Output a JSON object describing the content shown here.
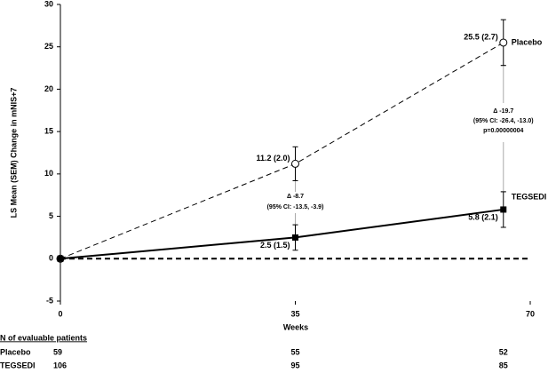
{
  "chart_data": {
    "type": "line",
    "y_label": "LS Mean (SEM) Change in mNIS+7",
    "x_label": "Weeks",
    "xlim": [
      0,
      70
    ],
    "xticks": [
      0,
      35,
      70
    ],
    "ylim": [
      -5,
      30
    ],
    "yticks": [
      -5,
      0,
      5,
      10,
      15,
      20,
      25,
      30
    ],
    "reference_line": 0,
    "series": [
      {
        "name": "Placebo",
        "color": "#000000",
        "dash": true,
        "marker": "open-circle",
        "x": [
          0,
          35,
          66
        ],
        "values": [
          0,
          11.2,
          25.5
        ],
        "errors": [
          null,
          2.0,
          2.7
        ],
        "value_labels": [
          null,
          "11.2 (2.0)",
          "25.5 (2.7)"
        ]
      },
      {
        "name": "TEGSEDI",
        "color": "#000000",
        "dash": false,
        "marker": "square",
        "x": [
          0,
          35,
          66
        ],
        "values": [
          0,
          2.5,
          5.8
        ],
        "errors": [
          null,
          1.5,
          2.1
        ],
        "value_labels": [
          null,
          "2.5 (1.5)",
          "5.8 (2.1)"
        ]
      }
    ],
    "annotations": [
      [
        "Δ -8.7",
        "(95% CI: -13.5, -3.9)"
      ],
      [
        "Δ -19.7",
        "(95% CI: -26.4, -13.0)",
        "p=0.00000004"
      ]
    ],
    "table": {
      "title": "N of evaluable patients",
      "rows": [
        {
          "name": "Placebo",
          "values": [
            "59",
            "55",
            "52"
          ]
        },
        {
          "name": "TEGSEDI",
          "values": [
            "106",
            "95",
            "85"
          ]
        }
      ]
    }
  }
}
